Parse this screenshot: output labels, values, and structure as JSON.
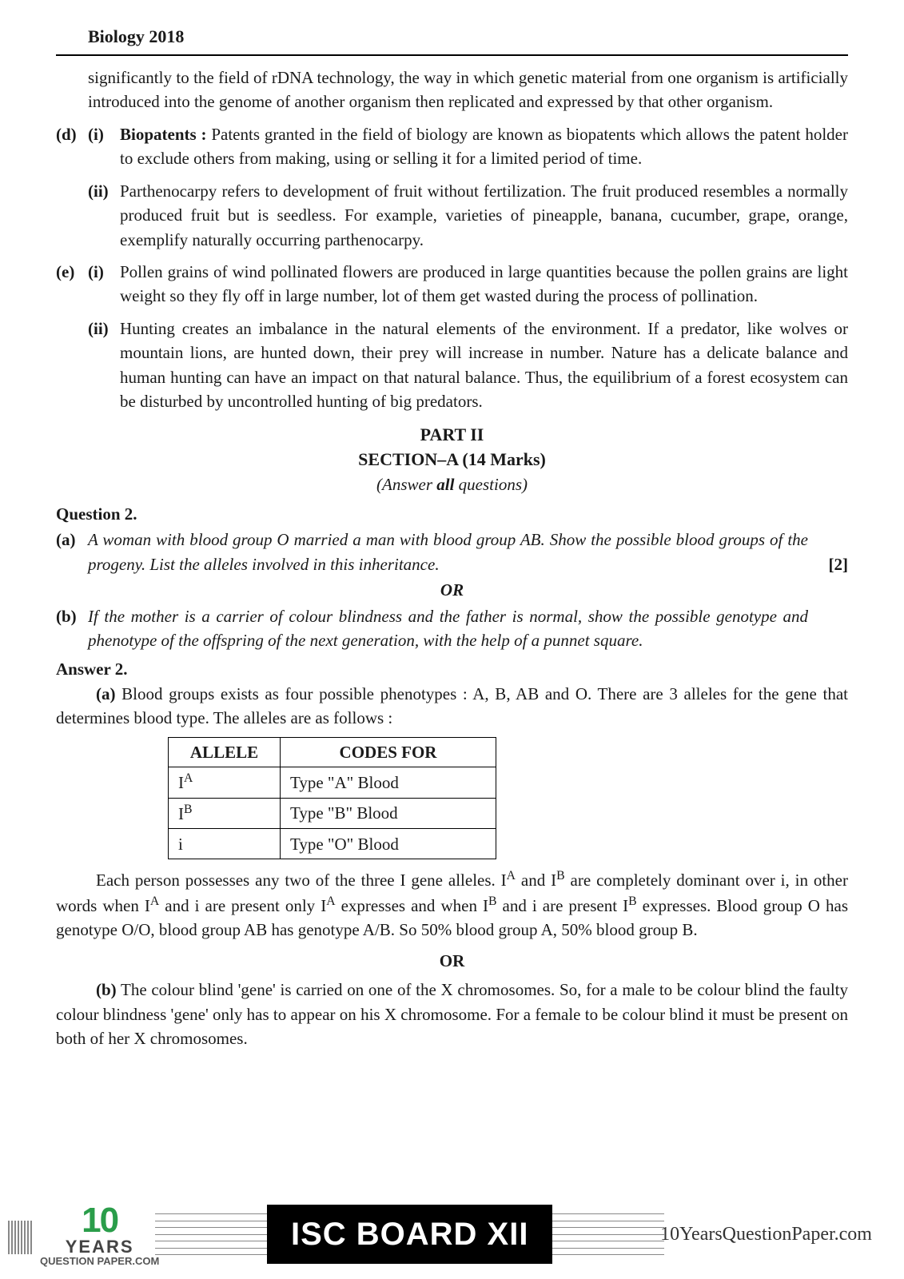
{
  "header": {
    "title": "Biology 2018"
  },
  "intro_para": "significantly to the field of rDNA technology, the way in which genetic material from one organism is artificially introduced into the genome of another organism then replicated and expressed by that other organism.",
  "d": {
    "label_outer": "(d)",
    "i": {
      "label": "(i)",
      "term": "Biopatents :",
      "text": " Patents granted in the field of biology are known as biopatents which allows the patent holder to exclude others from making, using or selling it for a limited period of time."
    },
    "ii": {
      "label": "(ii)",
      "text": "Parthenocarpy refers to development of fruit without fertilization. The fruit produced resembles a normally produced fruit but is seedless. For example, varieties of pineapple, banana, cucumber, grape, orange, exemplify naturally occurring parthenocarpy."
    }
  },
  "e": {
    "label_outer": "(e)",
    "i": {
      "label": "(i)",
      "text": "Pollen grains of wind pollinated  flowers are produced in large quantities because  the pollen grains are light weight so they fly off in large number, lot of them get wasted during  the process of pollination."
    },
    "ii": {
      "label": "(ii)",
      "text": "Hunting creates an imbalance in the natural elements of the environment. If a predator, like wolves or mountain lions, are hunted down, their prey will increase in number. Nature has a delicate balance and human hunting can have an impact on that natural balance. Thus, the equilibrium of a forest ecosystem can be disturbed by uncontrolled hunting of big predators."
    }
  },
  "section": {
    "part": "PART II",
    "section": "SECTION–A  (14 Marks)",
    "instr_pre": "(Answer ",
    "instr_bold": "all",
    "instr_post": "  questions)"
  },
  "q2": {
    "title": "Question 2.",
    "a": {
      "label": "(a)",
      "text": "A woman with blood group O married a man with blood group AB. Show the possible blood groups of the progeny. List the alleles involved in this inheritance.",
      "marks": "[2]"
    },
    "or": "OR",
    "b": {
      "label": "(b)",
      "text": "If the mother is a carrier of colour blindness and the father is normal, show the possible genotype and phenotype of the offspring of the next generation, with the help of a punnet square."
    }
  },
  "ans2": {
    "title": "Answer 2.",
    "a_label": "(a)",
    "a_text": " Blood groups exists as four possible phenotypes : A, B, AB and O. There are 3 alleles for the gene that determines blood type. The alleles are as follows :",
    "table": {
      "h1": "ALLELE",
      "h2": "CODES FOR",
      "rows": [
        {
          "allele_base": "I",
          "allele_sup": "A",
          "code": "Type \"A\" Blood"
        },
        {
          "allele_base": "I",
          "allele_sup": "B",
          "code": "Type \"B\" Blood"
        },
        {
          "allele_base": "i",
          "allele_sup": "",
          "code": "Type \"O\" Blood"
        }
      ]
    },
    "para2_1": "Each person possesses any two of the three I gene alleles. I",
    "para2_supA": "A",
    "para2_2": " and I",
    "para2_supB": "B",
    "para2_3": " are completely dominant over i, in other words when I",
    "para2_4": " and i are present only I",
    "para2_5": " expresses and when I",
    "para2_6": " and i are present I",
    "para2_7": " expresses. Blood group O has genotype O/O, blood group AB has genotype A/B. So 50% blood group A, 50% blood group B.",
    "or": "OR",
    "b_label": "(b)",
    "b_text": " The colour blind 'gene' is carried on one of the X chromosomes. So, for a male to be colour blind the faulty colour blindness 'gene' only has to appear on his X chromosome. For a female to be colour blind it must be present on both of her X chromosomes."
  },
  "footer": {
    "ten": "10",
    "years": "YEARS",
    "qp": "QUESTION PAPER.COM",
    "isc": "ISC BOARD XII",
    "site": "10YearsQuestionPaper.com"
  }
}
